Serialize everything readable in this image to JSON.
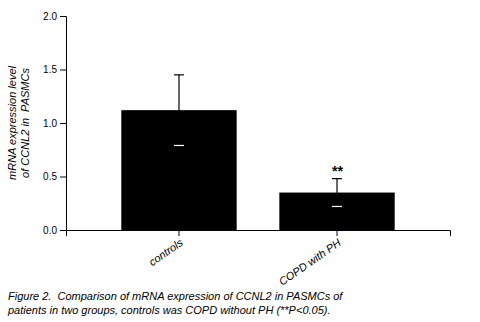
{
  "chart_data": {
    "type": "bar",
    "categories": [
      "controls",
      "COPD with PH"
    ],
    "values": [
      1.12,
      0.35
    ],
    "errors": [
      0.33,
      0.13
    ],
    "color": "#000000",
    "ylabel": "mRNA expression level\nof CCNL2 in  PASMCs",
    "ylim": [
      0,
      2.0
    ],
    "yticks": [
      {
        "value": 0,
        "label": "0.0"
      },
      0.5,
      {
        "value": 1.0,
        "label": "1.0"
      },
      1.5,
      {
        "value": 2.0,
        "label": "2.0"
      }
    ],
    "grid": false,
    "annotations": [
      {
        "text": "**",
        "category": "COPD with PH",
        "y": 0.49
      }
    ],
    "caption": [
      "Figure 2.  Comparison of mRNA expression of CCNL2 in PASMCs of",
      "patients in two groups, controls was COPD without PH (**P<0.05)."
    ]
  }
}
